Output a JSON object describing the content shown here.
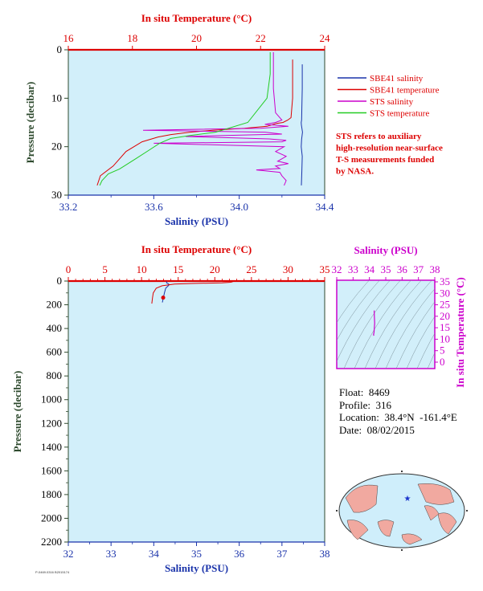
{
  "colors": {
    "red": "#dd0000",
    "blue": "#1a33aa",
    "magenta": "#cc00cc",
    "green": "#22aa22",
    "olive": "#2e4a2e",
    "panel": "#d2effa"
  },
  "legend": {
    "items": [
      {
        "label": "SBE41 salinity",
        "color": "#1a33aa"
      },
      {
        "label": "SBE41 temperature",
        "color": "#dd0000"
      },
      {
        "label": "STS salinity",
        "color": "#cc00cc"
      },
      {
        "label": "STS temperature",
        "color": "#22cc22"
      }
    ],
    "note": [
      "STS refers to auxiliary",
      "high-resolution near-surface",
      "T-S measurements funded",
      "by NASA."
    ]
  },
  "info": {
    "float": "Float:  8469",
    "profile": "Profile:  316",
    "location": "Location:  38.4°N  -161.4°E",
    "date": "Date:  08/02/2015"
  },
  "credit": "P-0469.0316 B2015174",
  "chart_data": [
    {
      "id": "top",
      "type": "line",
      "top_axis_label": "In situ Temperature (°C)",
      "bottom_axis_label": "Salinity (PSU)",
      "y_axis_label": "Pressure (decibar)",
      "temp_ticks": [
        "16",
        "18",
        "20",
        "22",
        "24"
      ],
      "sal_ticks": [
        "33.2",
        "33.6",
        "34.0",
        "34.4"
      ],
      "p_ticks": [
        "0",
        "10",
        "20",
        "30"
      ],
      "xlim_temp": [
        16,
        24
      ],
      "xlim_sal": [
        33.2,
        34.4
      ],
      "ylim": [
        0,
        30
      ],
      "series": [
        {
          "name": "SBE41 salinity",
          "color": "#1a33aa",
          "x": [
            34.295,
            34.295,
            34.293,
            34.292,
            34.29,
            34.291,
            34.296,
            34.292,
            34.29,
            34.295,
            34.293,
            34.291
          ],
          "y": [
            3,
            8,
            12,
            14.5,
            15,
            15.5,
            17,
            18.5,
            20,
            22,
            25,
            28
          ]
        },
        {
          "name": "SBE41 temperature",
          "color": "#dd0000",
          "x": [
            23.0,
            23.0,
            23.0,
            22.95,
            22.85,
            22.7,
            22.5,
            22.4,
            22.2,
            21.5,
            20.5,
            19.8,
            19.2,
            18.8,
            18.3,
            17.8,
            17.4,
            17.0,
            16.9
          ],
          "y": [
            2,
            6,
            10,
            14,
            14.5,
            15,
            15.2,
            15.4,
            15.8,
            16.2,
            16.6,
            17.0,
            17.5,
            18.0,
            19,
            21,
            24,
            26,
            28
          ]
        },
        {
          "name": "STS salinity",
          "color": "#cc00cc",
          "x": [
            34.16,
            34.16,
            34.17,
            34.2,
            34.17,
            34.12,
            34.23,
            34.1,
            33.55,
            34.12,
            34.2,
            33.75,
            34.14,
            34.22,
            34.2,
            33.6,
            34.21,
            34.17,
            34.22,
            34.18,
            34.23,
            34.17,
            34.19,
            34.08,
            34.19,
            34.2,
            34.21,
            34.22,
            34.21
          ],
          "y": [
            0.5,
            8,
            13,
            14.5,
            15,
            15.4,
            15.8,
            16.2,
            16.6,
            17.0,
            17.4,
            17.9,
            18.4,
            18.7,
            19,
            19.3,
            20,
            21,
            22,
            23,
            23.5,
            24,
            24.5,
            24.8,
            25.3,
            26,
            26.5,
            27,
            28
          ]
        },
        {
          "name": "STS temperature",
          "color": "#22cc22",
          "x": [
            22.3,
            22.3,
            22.2,
            21.6,
            20.6,
            19.8,
            19.2,
            18.85,
            18.5,
            18.1,
            17.6,
            17.25,
            17.05,
            16.98
          ],
          "y": [
            0.5,
            5,
            10,
            15,
            17,
            17.7,
            18.3,
            19.3,
            20.8,
            22.5,
            24.6,
            25.6,
            27,
            28
          ]
        }
      ]
    },
    {
      "id": "bottom",
      "type": "line",
      "top_axis_label": "In situ Temperature (°C)",
      "bottom_axis_label": "Salinity (PSU)",
      "y_axis_label": "Pressure (decibar)",
      "temp_ticks": [
        "0",
        "5",
        "10",
        "15",
        "20",
        "25",
        "30",
        "35"
      ],
      "sal_ticks": [
        "32",
        "33",
        "34",
        "35",
        "36",
        "37",
        "38"
      ],
      "p_ticks": [
        "0",
        "200",
        "400",
        "600",
        "800",
        "1000",
        "1200",
        "1400",
        "1600",
        "1800",
        "2000",
        "2200"
      ],
      "xlim_temp": [
        0,
        35
      ],
      "xlim_sal": [
        32,
        38
      ],
      "ylim": [
        0,
        2200
      ],
      "series": [
        {
          "name": "SBE41 salinity",
          "color": "#1a33aa",
          "x": [
            34.3,
            34.3,
            34.33,
            34.36,
            34.34,
            34.28,
            34.25,
            34.2
          ],
          "y": [
            3,
            15,
            20,
            30,
            40,
            60,
            100,
            180
          ]
        },
        {
          "name": "SBE41 temperature",
          "color": "#dd0000",
          "x": [
            22.6,
            22.2,
            21.0,
            17.0,
            14.5,
            12.8,
            12.0,
            11.6,
            11.5,
            11.4
          ],
          "y": [
            2,
            10,
            15,
            20,
            25,
            40,
            60,
            100,
            140,
            190
          ]
        }
      ]
    },
    {
      "id": "ts",
      "type": "line",
      "top_axis_label": "Salinity (PSU)",
      "y_axis_label": "In situ Temperature (°C)",
      "sal_ticks": [
        "32",
        "33",
        "34",
        "35",
        "36",
        "37",
        "38"
      ],
      "temp_ticks": [
        "0",
        "5",
        "10",
        "15",
        "20",
        "25",
        "30",
        "35"
      ],
      "xlim_sal": [
        32,
        38
      ],
      "ylim_temp": [
        -2,
        35
      ],
      "series": [
        {
          "name": "SBE41",
          "color": "#cc00cc",
          "x": [
            34.29,
            34.3,
            34.32,
            34.3,
            34.28,
            34.25,
            34.27
          ],
          "y": [
            22.5,
            20,
            17,
            15,
            13,
            12,
            11.5
          ]
        }
      ]
    }
  ],
  "map": {
    "star": {
      "lon": -161.4,
      "lat": 38.4
    }
  }
}
